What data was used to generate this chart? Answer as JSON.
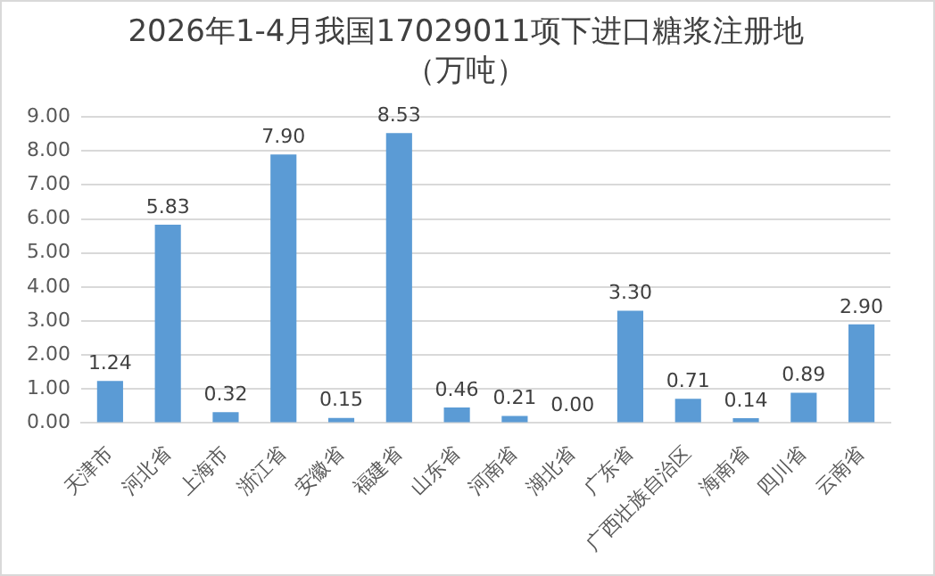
{
  "chart_data": {
    "type": "bar",
    "title": "2026年1-4月我国17029011项下进口糖浆注册地（万吨）",
    "categories": [
      "天津市",
      "河北省",
      "上海市",
      "浙江省",
      "安徽省",
      "福建省",
      "山东省",
      "河南省",
      "湖北省",
      "广东省",
      "广西壮族自治区",
      "海南省",
      "四川省",
      "云南省"
    ],
    "values": [
      1.24,
      5.83,
      0.32,
      7.9,
      0.15,
      8.53,
      0.46,
      0.21,
      0,
      3.3,
      0.71,
      0.14,
      0.89,
      2.9
    ],
    "value_labels": [
      "1.24",
      "5.83",
      "0.32",
      "7.90",
      "0.15",
      "8.53",
      "0.46",
      "0.21",
      "0.00",
      "3.30",
      "0.71",
      "0.14",
      "0.89",
      "2.90"
    ],
    "color": "#5b9bd5",
    "ylim": [
      0,
      9
    ],
    "yticks": [
      {
        "value": 0,
        "label": "0.00"
      },
      {
        "value": 1,
        "label": "1.00"
      },
      {
        "value": 2,
        "label": "2.00"
      },
      {
        "value": 3,
        "label": "3.00"
      },
      {
        "value": 4,
        "label": "4.00"
      },
      {
        "value": 5,
        "label": "5.00"
      },
      {
        "value": 6,
        "label": "6.00"
      },
      {
        "value": 7,
        "label": "7.00"
      },
      {
        "value": 8,
        "label": "8.00"
      },
      {
        "value": 9,
        "label": "9.00"
      }
    ],
    "grid": "y",
    "legend": false
  }
}
